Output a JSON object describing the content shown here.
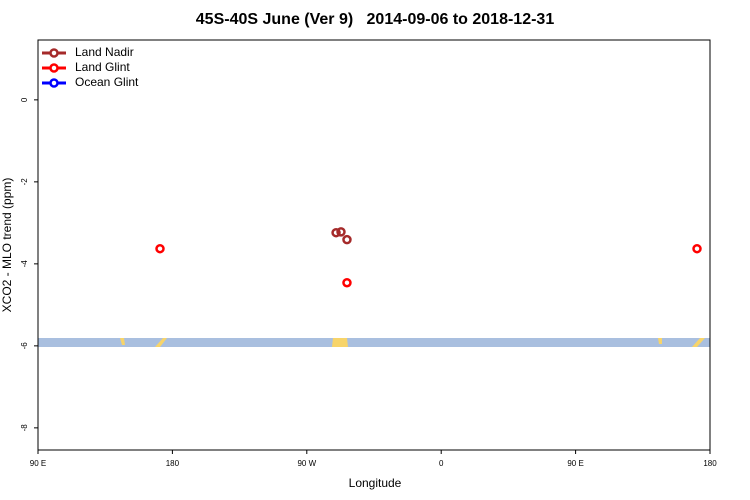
{
  "chart_data": {
    "type": "scatter",
    "title": "45S-40S June (Ver 9)   2014-09-06 to 2018-12-31",
    "x_label": "Longitude",
    "y_label": "XCO2 - MLO trend (ppm)",
    "xlim": [
      90,
      540
    ],
    "ylim": [
      -8.54,
      1.46
    ],
    "xticks": [
      {
        "value": 90,
        "label": "90 E"
      },
      180,
      {
        "value": 270,
        "label": "90 W"
      },
      {
        "value": 360,
        "label": "0"
      },
      {
        "value": 450,
        "label": "90 E"
      },
      {
        "value": 540,
        "label": "180"
      }
    ],
    "yticks": [
      0,
      -2,
      -4,
      -6,
      -8
    ],
    "legend": "top-left",
    "series": [
      {
        "name": "Land Nadir",
        "color": "#a52a2a",
        "x": [
          289.6,
          292.9,
          296.9
        ],
        "values": [
          -3.24,
          -3.22,
          -3.41
        ]
      },
      {
        "name": "Land Glint",
        "color": "#ff0000",
        "x": [
          171.7,
          296.9,
          531.3
        ],
        "values": [
          -3.63,
          -4.46,
          -3.63
        ]
      },
      {
        "name": "Ocean Glint",
        "color": "#0000ff",
        "x": [],
        "values": []
      }
    ]
  }
}
